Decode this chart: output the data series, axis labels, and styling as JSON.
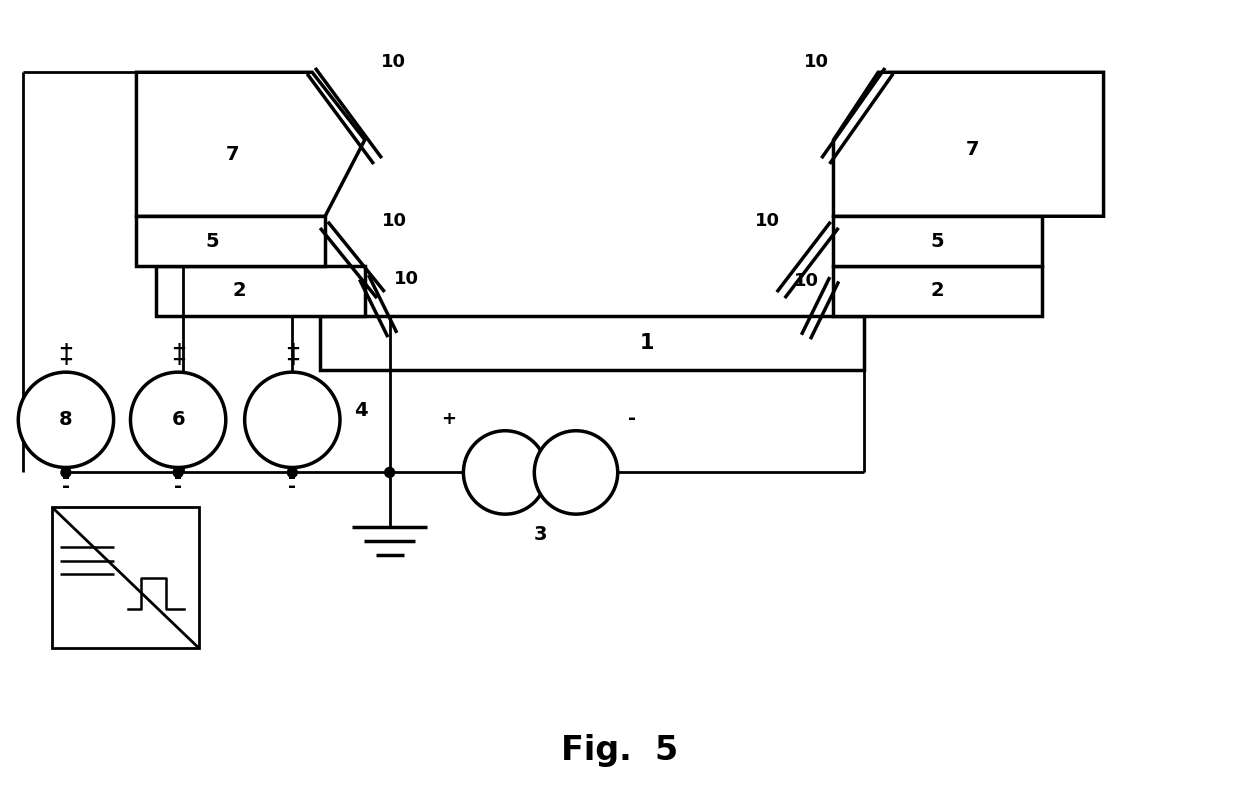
{
  "bg_color": "#ffffff",
  "lw": 2.0,
  "tlw": 2.5,
  "fig_title": "Fig.  5"
}
